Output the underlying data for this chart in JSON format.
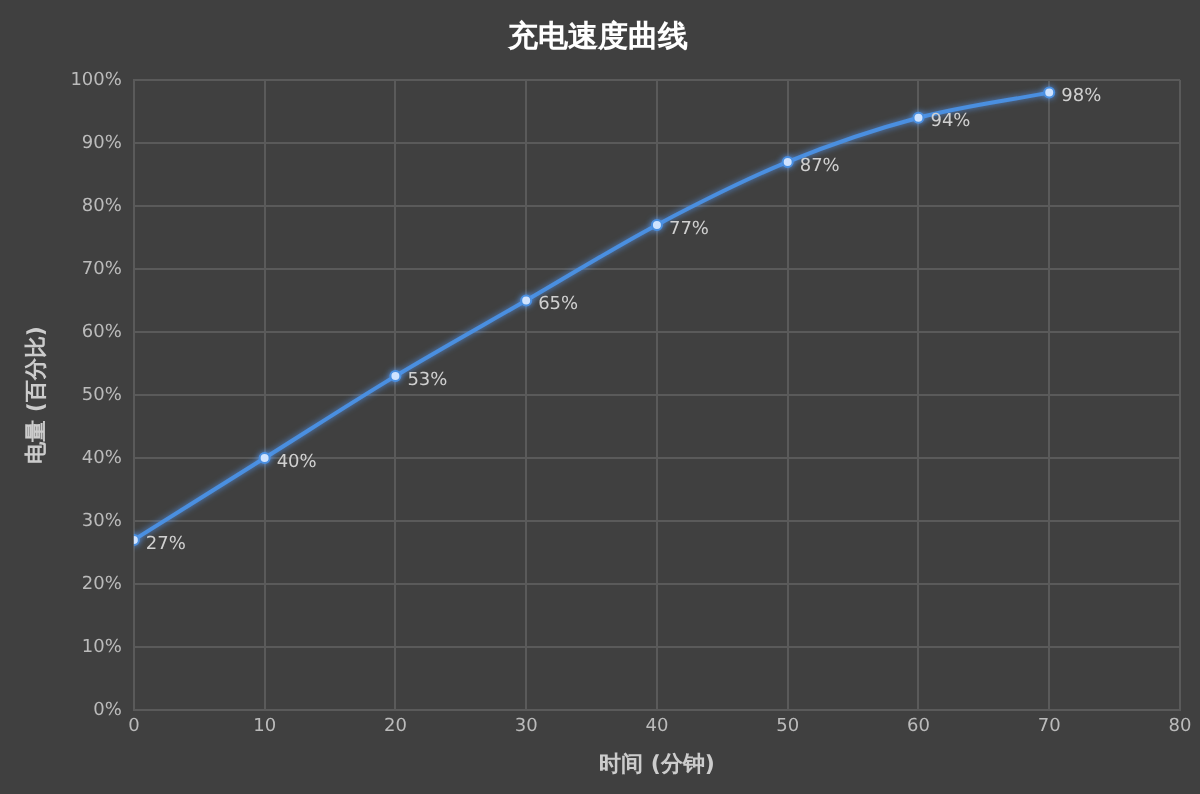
{
  "chart_data": {
    "type": "line",
    "title": "充电速度曲线",
    "xlabel": "时间 (分钟)",
    "ylabel": "电量 (百分比)",
    "x": [
      0,
      10,
      20,
      30,
      40,
      50,
      60,
      70
    ],
    "series": [
      {
        "color": "#4a8fe0",
        "values": [
          27,
          40,
          53,
          65,
          77,
          87,
          94,
          98
        ],
        "value_labels": [
          "27%",
          "40%",
          "53%",
          "65%",
          "77%",
          "87%",
          "94%",
          "98%"
        ]
      }
    ],
    "xlim": [
      0,
      80
    ],
    "xticks": [
      0,
      10,
      20,
      30,
      40,
      50,
      60,
      70,
      80
    ],
    "ylim": [
      0,
      100
    ],
    "yticks": [
      {
        "value": 0,
        "label": "0%"
      },
      {
        "value": 10,
        "label": "10%"
      },
      {
        "value": 20,
        "label": "20%"
      },
      {
        "value": 30,
        "label": "30%"
      },
      {
        "value": 40,
        "label": "40%"
      },
      {
        "value": 50,
        "label": "50%"
      },
      {
        "value": 60,
        "label": "60%"
      },
      {
        "value": 70,
        "label": "70%"
      },
      {
        "value": 80,
        "label": "80%"
      },
      {
        "value": 90,
        "label": "90%"
      },
      {
        "value": 100,
        "label": "100%"
      }
    ],
    "grid": true,
    "legend": false,
    "marker": "circle",
    "line_style": "solid"
  }
}
